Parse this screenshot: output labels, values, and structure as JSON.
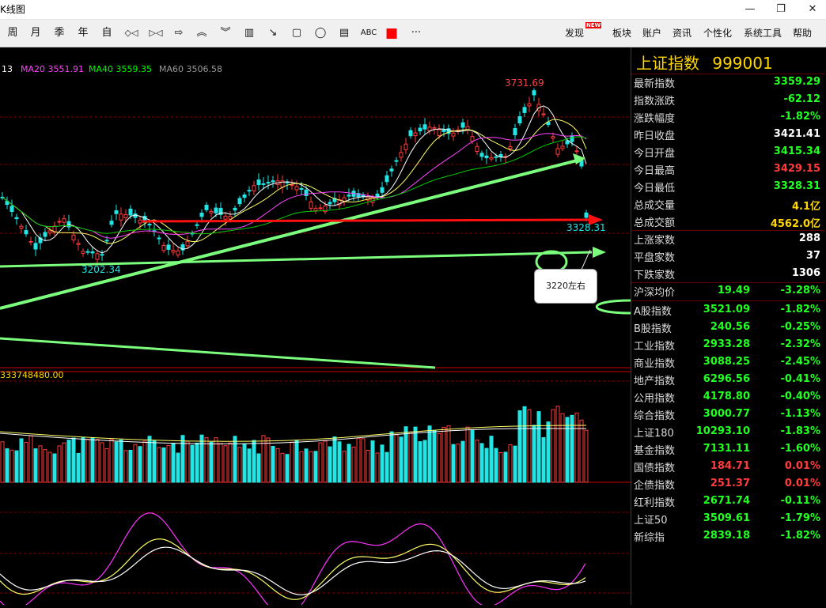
{
  "window": {
    "title": "K线图",
    "controls": [
      "—",
      "❐",
      "✕"
    ]
  },
  "toolbar": {
    "periods": [
      "周",
      "月",
      "季",
      "年",
      "自"
    ],
    "tools": [
      "◇◁",
      "▷◁",
      "⇨",
      "︽",
      "︾",
      "▥",
      "↘",
      "▢",
      "◯",
      "▤",
      "ABC",
      "■",
      "···"
    ],
    "menu": {
      "discover": "发现",
      "new_badge": "NEW",
      "sector": "板块",
      "account": "账户",
      "news": "资讯",
      "personalize": "个性化",
      "system_tools": "系统工具",
      "help": "帮助"
    }
  },
  "ma_legend": [
    {
      "label": "13",
      "color": "#ffffff"
    },
    {
      "label": "MA20 3551.91",
      "color": "#ff44ff"
    },
    {
      "label": "MA40 3559.35",
      "color": "#00ff00"
    },
    {
      "label": "MA60 3506.58",
      "color": "#9a9a9a"
    }
  ],
  "annotations": {
    "high_label": "3731.69",
    "low_left_label": "3202.34",
    "low_right_label": "3328.31",
    "note": "3220左右",
    "volume_label": "333748480.00"
  },
  "colors": {
    "up": "#ff3b3b",
    "down": "#22e5e5",
    "trend": "#7cff7c",
    "arrow": "#ff1010",
    "value_green": "#22ff22",
    "value_red": "#ff3b3b",
    "label_gold": "#ffd700"
  },
  "panel": {
    "title": "上证指数",
    "code": "999001",
    "quotes": [
      {
        "label": "最新指数",
        "value": "3359.29",
        "tone": "green"
      },
      {
        "label": "指数涨跌",
        "value": "-62.12",
        "tone": "green"
      },
      {
        "label": "涨跌幅度",
        "value": "-1.82%",
        "tone": "green"
      },
      {
        "label": "昨日收盘",
        "value": "3421.41",
        "tone": "white"
      },
      {
        "label": "今日开盘",
        "value": "3415.34",
        "tone": "green"
      },
      {
        "label": "今日最高",
        "value": "3429.15",
        "tone": "red"
      },
      {
        "label": "今日最低",
        "value": "3328.31",
        "tone": "green"
      },
      {
        "label": "总成交量",
        "value": "4.1亿",
        "tone": "gold"
      },
      {
        "label": "总成交额",
        "value": "4562.0亿",
        "tone": "gold"
      },
      {
        "label": "上涨家数",
        "value": "288",
        "tone": "white"
      },
      {
        "label": "平盘家数",
        "value": "37",
        "tone": "white"
      },
      {
        "label": "下跌家数",
        "value": "1306",
        "tone": "white"
      }
    ],
    "avg": {
      "label": "沪深均价",
      "value": "19.49",
      "change": "-3.28%"
    },
    "indices": [
      {
        "label": "A股指数",
        "value": "3521.09",
        "change": "-1.82%",
        "tone": "green"
      },
      {
        "label": "B股指数",
        "value": "240.56",
        "change": "-0.25%",
        "tone": "green"
      },
      {
        "label": "工业指数",
        "value": "2933.28",
        "change": "-2.32%",
        "tone": "green"
      },
      {
        "label": "商业指数",
        "value": "3088.25",
        "change": "-2.45%",
        "tone": "green"
      },
      {
        "label": "地产指数",
        "value": "6296.56",
        "change": "-0.41%",
        "tone": "green"
      },
      {
        "label": "公用指数",
        "value": "4178.80",
        "change": "-0.40%",
        "tone": "green"
      },
      {
        "label": "综合指数",
        "value": "3000.77",
        "change": "-1.13%",
        "tone": "green"
      },
      {
        "label": "上证180",
        "value": "10293.10",
        "change": "-1.83%",
        "tone": "green"
      },
      {
        "label": "基金指数",
        "value": "7131.11",
        "change": "-1.60%",
        "tone": "green"
      },
      {
        "label": "国债指数",
        "value": "184.71",
        "change": "0.01%",
        "tone": "red"
      },
      {
        "label": "企债指数",
        "value": "251.37",
        "change": "0.01%",
        "tone": "red"
      },
      {
        "label": "红利指数",
        "value": "2671.74",
        "change": "-0.11%",
        "tone": "green"
      },
      {
        "label": "上证50",
        "value": "3509.61",
        "change": "-1.79%",
        "tone": "green"
      },
      {
        "label": "新综指",
        "value": "2839.18",
        "change": "-1.82%",
        "tone": "green"
      }
    ]
  }
}
